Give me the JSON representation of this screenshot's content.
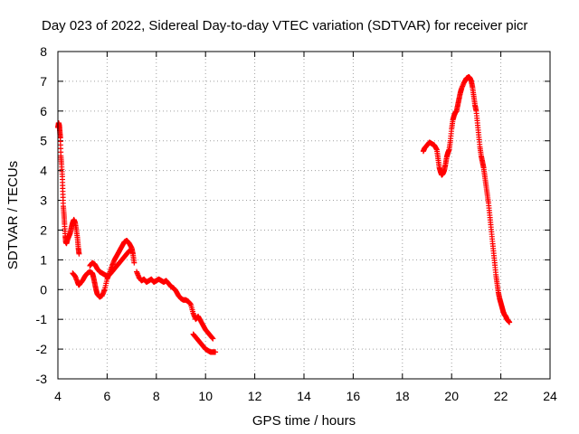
{
  "chart_data": {
    "type": "scatter",
    "title": "Day 023 of 2022, Sidereal Day-to-day VTEC variation (SDTVAR) for receiver picr",
    "xlabel": "GPS time / hours",
    "ylabel": "SDTVAR / TECUs",
    "xlim": [
      4,
      24
    ],
    "ylim": [
      -3,
      8
    ],
    "xticks": [
      "4",
      "6",
      "8",
      "10",
      "12",
      "14",
      "16",
      "18",
      "20",
      "22",
      "24"
    ],
    "yticks": [
      "-3",
      "-2",
      "-1",
      "0",
      "1",
      "2",
      "3",
      "4",
      "5",
      "6",
      "7",
      "8"
    ],
    "grid": true,
    "marker": "plus",
    "series": [
      {
        "name": "SDTVAR",
        "color": "#ff0000",
        "segments": [
          [
            [
              4.0,
              5.45
            ],
            [
              4.03,
              5.6
            ],
            [
              4.06,
              5.5
            ],
            [
              4.08,
              5.3
            ],
            [
              4.1,
              5.1
            ],
            [
              4.12,
              4.5
            ],
            [
              4.15,
              4.2
            ],
            [
              4.18,
              3.8
            ],
            [
              4.2,
              3.3
            ],
            [
              4.22,
              2.8
            ],
            [
              4.25,
              2.5
            ],
            [
              4.27,
              2.2
            ],
            [
              4.3,
              1.8
            ],
            [
              4.32,
              1.6
            ],
            [
              4.35,
              1.55
            ],
            [
              4.4,
              1.7
            ],
            [
              4.45,
              1.8
            ],
            [
              4.5,
              1.9
            ],
            [
              4.55,
              2.1
            ],
            [
              4.6,
              2.25
            ],
            [
              4.65,
              2.35
            ],
            [
              4.7,
              2.25
            ],
            [
              4.75,
              2.0
            ],
            [
              4.8,
              1.7
            ],
            [
              4.83,
              1.4
            ],
            [
              4.86,
              1.2
            ]
          ],
          [
            [
              4.6,
              0.55
            ],
            [
              4.7,
              0.45
            ],
            [
              4.8,
              0.25
            ],
            [
              4.85,
              0.15
            ],
            [
              4.9,
              0.2
            ],
            [
              5.0,
              0.3
            ],
            [
              5.1,
              0.45
            ],
            [
              5.2,
              0.55
            ],
            [
              5.3,
              0.6
            ],
            [
              5.4,
              0.55
            ],
            [
              5.45,
              0.4
            ],
            [
              5.5,
              0.2
            ],
            [
              5.55,
              0.0
            ],
            [
              5.6,
              -0.15
            ],
            [
              5.7,
              -0.25
            ],
            [
              5.8,
              -0.2
            ],
            [
              5.9,
              0.0
            ],
            [
              6.0,
              0.35
            ],
            [
              6.1,
              0.55
            ],
            [
              6.2,
              0.8
            ],
            [
              6.3,
              1.0
            ],
            [
              6.4,
              1.15
            ],
            [
              6.5,
              1.3
            ],
            [
              6.6,
              1.45
            ],
            [
              6.7,
              1.6
            ],
            [
              6.8,
              1.65
            ],
            [
              6.9,
              1.55
            ],
            [
              7.0,
              1.4
            ],
            [
              7.05,
              1.2
            ],
            [
              7.1,
              0.9
            ]
          ],
          [
            [
              5.3,
              0.8
            ],
            [
              5.4,
              0.9
            ],
            [
              5.5,
              0.85
            ],
            [
              5.6,
              0.7
            ],
            [
              5.7,
              0.6
            ],
            [
              5.8,
              0.55
            ],
            [
              5.9,
              0.5
            ],
            [
              6.0,
              0.45
            ],
            [
              6.1,
              0.5
            ],
            [
              6.2,
              0.6
            ],
            [
              6.3,
              0.7
            ],
            [
              6.4,
              0.8
            ],
            [
              6.5,
              0.9
            ],
            [
              6.6,
              1.0
            ],
            [
              6.7,
              1.1
            ],
            [
              6.8,
              1.2
            ],
            [
              6.9,
              1.3
            ],
            [
              7.0,
              1.35
            ]
          ],
          [
            [
              7.2,
              0.6
            ],
            [
              7.3,
              0.4
            ],
            [
              7.4,
              0.3
            ],
            [
              7.5,
              0.35
            ],
            [
              7.6,
              0.25
            ],
            [
              7.7,
              0.3
            ],
            [
              7.8,
              0.35
            ],
            [
              7.9,
              0.25
            ],
            [
              8.0,
              0.3
            ],
            [
              8.1,
              0.35
            ],
            [
              8.2,
              0.3
            ],
            [
              8.3,
              0.25
            ],
            [
              8.4,
              0.3
            ],
            [
              8.5,
              0.2
            ],
            [
              8.6,
              0.1
            ],
            [
              8.7,
              0.05
            ],
            [
              8.8,
              -0.05
            ],
            [
              8.9,
              -0.2
            ],
            [
              9.0,
              -0.3
            ],
            [
              9.1,
              -0.35
            ],
            [
              9.2,
              -0.35
            ],
            [
              9.3,
              -0.4
            ],
            [
              9.4,
              -0.5
            ],
            [
              9.5,
              -0.8
            ],
            [
              9.6,
              -1.0
            ],
            [
              9.7,
              -0.9
            ],
            [
              9.8,
              -1.05
            ],
            [
              9.9,
              -1.2
            ],
            [
              10.0,
              -1.35
            ],
            [
              10.1,
              -1.45
            ],
            [
              10.2,
              -1.55
            ],
            [
              10.3,
              -1.65
            ]
          ],
          [
            [
              9.5,
              -1.5
            ],
            [
              9.6,
              -1.6
            ],
            [
              9.7,
              -1.7
            ],
            [
              9.8,
              -1.8
            ],
            [
              9.9,
              -1.9
            ],
            [
              10.0,
              -2.0
            ],
            [
              10.1,
              -2.05
            ],
            [
              10.2,
              -2.1
            ],
            [
              10.3,
              -2.1
            ],
            [
              10.4,
              -2.1
            ]
          ],
          [
            [
              18.85,
              4.65
            ],
            [
              18.9,
              4.75
            ],
            [
              19.0,
              4.85
            ],
            [
              19.1,
              4.95
            ],
            [
              19.2,
              4.9
            ],
            [
              19.3,
              4.85
            ],
            [
              19.4,
              4.7
            ],
            [
              19.45,
              4.4
            ],
            [
              19.5,
              4.1
            ],
            [
              19.55,
              3.95
            ],
            [
              19.6,
              3.85
            ],
            [
              19.65,
              3.9
            ],
            [
              19.7,
              4.0
            ],
            [
              19.75,
              4.2
            ],
            [
              19.8,
              4.45
            ],
            [
              19.85,
              4.6
            ],
            [
              19.9,
              4.7
            ],
            [
              19.95,
              5.0
            ],
            [
              20.0,
              5.4
            ],
            [
              20.05,
              5.7
            ],
            [
              20.1,
              5.85
            ],
            [
              20.15,
              5.95
            ],
            [
              20.2,
              6.0
            ],
            [
              20.25,
              6.2
            ],
            [
              20.3,
              6.4
            ],
            [
              20.35,
              6.6
            ],
            [
              20.4,
              6.75
            ],
            [
              20.5,
              6.95
            ],
            [
              20.6,
              7.1
            ],
            [
              20.7,
              7.15
            ],
            [
              20.75,
              7.1
            ],
            [
              20.8,
              7.0
            ],
            [
              20.85,
              6.8
            ],
            [
              20.9,
              6.5
            ],
            [
              20.95,
              6.2
            ],
            [
              21.0,
              6.0
            ],
            [
              21.05,
              5.6
            ],
            [
              21.1,
              5.2
            ],
            [
              21.15,
              4.8
            ],
            [
              21.2,
              4.5
            ],
            [
              21.25,
              4.3
            ],
            [
              21.3,
              4.1
            ],
            [
              21.35,
              3.8
            ],
            [
              21.4,
              3.5
            ],
            [
              21.45,
              3.2
            ],
            [
              21.5,
              2.9
            ],
            [
              21.55,
              2.5
            ],
            [
              21.6,
              2.1
            ],
            [
              21.65,
              1.7
            ],
            [
              21.7,
              1.3
            ],
            [
              21.75,
              0.9
            ],
            [
              21.8,
              0.5
            ],
            [
              21.85,
              0.2
            ],
            [
              21.9,
              -0.1
            ],
            [
              21.95,
              -0.3
            ],
            [
              22.0,
              -0.45
            ],
            [
              22.05,
              -0.6
            ],
            [
              22.1,
              -0.75
            ],
            [
              22.15,
              -0.85
            ],
            [
              22.2,
              -0.9
            ],
            [
              22.25,
              -1.0
            ],
            [
              22.3,
              -1.05
            ],
            [
              22.35,
              -1.1
            ]
          ]
        ]
      }
    ]
  }
}
